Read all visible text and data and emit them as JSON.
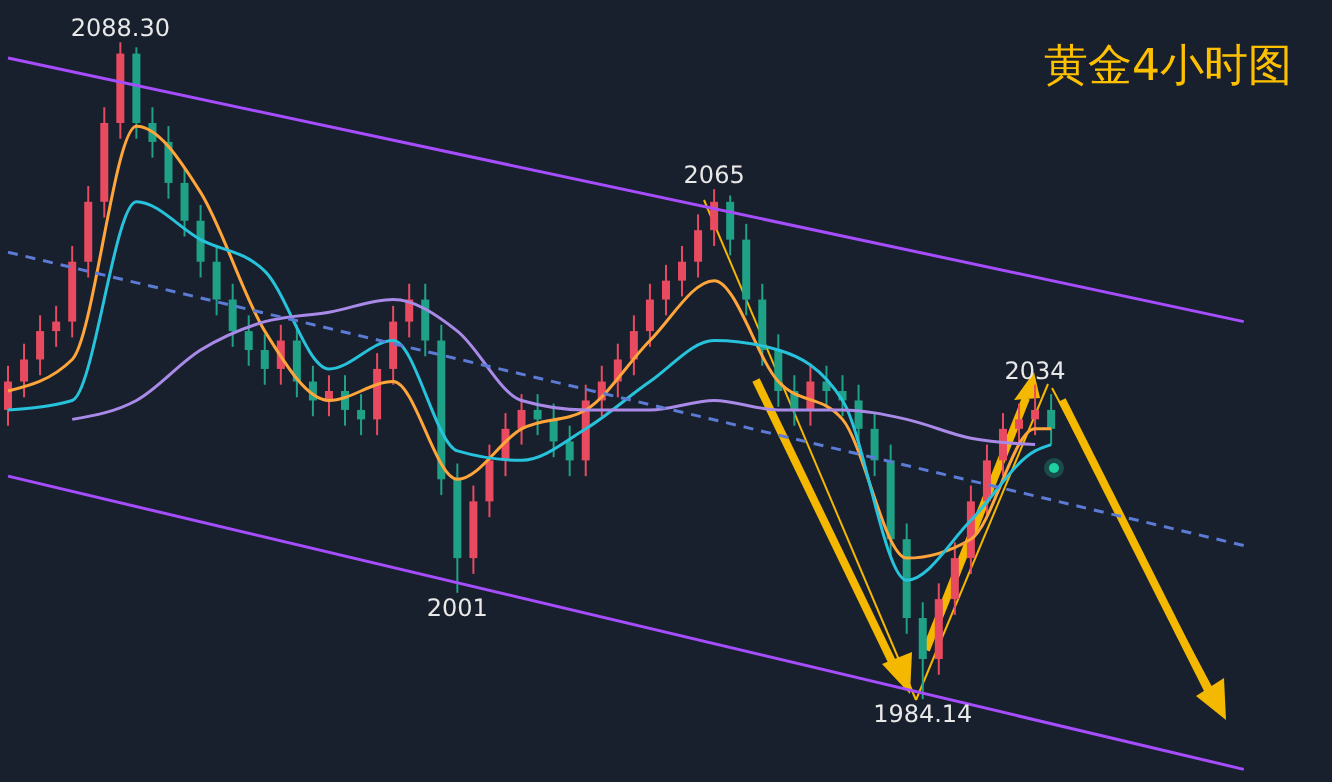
{
  "chart_data": {
    "type": "candlestick",
    "title": "黄金4小时图",
    "categories": [
      null,
      null,
      null,
      null,
      null,
      null,
      null,
      null,
      null,
      null,
      null,
      null,
      null,
      null,
      null,
      null,
      null,
      null,
      null,
      null,
      null,
      null,
      null,
      null,
      null,
      null,
      null,
      null,
      null,
      null,
      null,
      null,
      null,
      null,
      null,
      null,
      null,
      null,
      null,
      null,
      null,
      null,
      null,
      null,
      null,
      null,
      null,
      null,
      null,
      null,
      null,
      null,
      null,
      null,
      null,
      null,
      null,
      null,
      null,
      null,
      null,
      null,
      null,
      null,
      null,
      null,
      null,
      null,
      null,
      null,
      null,
      null,
      null,
      null,
      null,
      null,
      null,
      null,
      null,
      null,
      null,
      null,
      null
    ],
    "ylim": [
      1971,
      2095
    ],
    "tick_labels": false,
    "grid": false,
    "legend": false,
    "series": [
      {
        "colors": [
          "#e84a5f",
          "#e84a5f",
          "#e84a5f",
          "#e84a5f",
          "#e84a5f",
          "#e84a5f",
          "#e84a5f",
          "#e84a5f",
          "#1fa187",
          "#1fa187",
          "#1fa187",
          "#1fa187",
          "#1fa187",
          "#1fa187",
          "#1fa187",
          "#1fa187",
          "#1fa187",
          "#e84a5f",
          "#1fa187",
          "#1fa187",
          "#e84a5f",
          "#1fa187",
          "#1fa187",
          "#e84a5f",
          "#e84a5f",
          "#e84a5f",
          "#1fa187",
          "#1fa187",
          "#1fa187",
          "#e84a5f",
          "#e84a5f",
          "#e84a5f",
          "#e84a5f",
          "#1fa187",
          "#1fa187",
          "#1fa187",
          "#e84a5f",
          "#e84a5f",
          "#e84a5f",
          "#e84a5f",
          "#e84a5f",
          "#e84a5f",
          "#e84a5f",
          "#e84a5f",
          "#e84a5f",
          "#1fa187",
          "#1fa187",
          "#1fa187",
          "#1fa187",
          "#1fa187",
          "#e84a5f",
          "#1fa187",
          "#1fa187",
          "#1fa187",
          "#1fa187",
          "#1fa187",
          "#1fa187",
          "#1fa187",
          "#e84a5f",
          "#e84a5f",
          "#e84a5f",
          "#e84a5f",
          "#e84a5f",
          "#e84a5f",
          "#e84a5f",
          "#1fa187",
          null,
          null,
          null,
          null,
          null,
          null,
          null,
          null,
          null,
          null,
          null,
          null,
          null,
          null,
          null,
          null,
          null
        ],
        "ohlc": [
          [
            2030,
            2037,
            2027.5,
            2034.5
          ],
          [
            2034.5,
            2040.5,
            2032,
            2038
          ],
          [
            2038,
            2045,
            2035.5,
            2042.5
          ],
          [
            2042.5,
            2046.5,
            2040,
            2044
          ],
          [
            2044,
            2056,
            2041.5,
            2053.5
          ],
          [
            2053.5,
            2065.5,
            2051,
            2063
          ],
          [
            2063,
            2078,
            2060.5,
            2075.5
          ],
          [
            2075.5,
            2088.3,
            2073,
            2086.5
          ],
          [
            2086.5,
            2087.5,
            2073,
            2075.5
          ],
          [
            2075.5,
            2078,
            2070,
            2072.5
          ],
          [
            2072.5,
            2075,
            2063.5,
            2066
          ],
          [
            2066,
            2068.5,
            2057.5,
            2060
          ],
          [
            2060,
            2062.5,
            2051,
            2053.5
          ],
          [
            2053.5,
            2056,
            2045,
            2047.5
          ],
          [
            2047.5,
            2050,
            2040,
            2042.5
          ],
          [
            2042.5,
            2045,
            2037,
            2039.5
          ],
          [
            2039.5,
            2042,
            2034,
            2036.5
          ],
          [
            2036.5,
            2043.5,
            2034,
            2041
          ],
          [
            2041,
            2043.5,
            2032,
            2034.5
          ],
          [
            2034.5,
            2037,
            2029,
            2031.5
          ],
          [
            2031.5,
            2035.5,
            2029,
            2033
          ],
          [
            2033,
            2035.5,
            2027.5,
            2030
          ],
          [
            2030,
            2032.5,
            2026,
            2028.5
          ],
          [
            2028.5,
            2039,
            2026,
            2036.5
          ],
          [
            2036.5,
            2046.5,
            2034,
            2044
          ],
          [
            2044,
            2050,
            2041.5,
            2047.5
          ],
          [
            2047.5,
            2050,
            2038.5,
            2041
          ],
          [
            2041,
            2043.5,
            2016.5,
            2019
          ],
          [
            2019,
            2021.5,
            2001,
            2006.5
          ],
          [
            2006.5,
            2018,
            2004,
            2015.5
          ],
          [
            2015.5,
            2024.5,
            2013,
            2022
          ],
          [
            2022,
            2029.5,
            2019.5,
            2027
          ],
          [
            2027,
            2032.5,
            2024.5,
            2030
          ],
          [
            2030,
            2032.5,
            2026,
            2028.5
          ],
          [
            2028.5,
            2031,
            2022.5,
            2025
          ],
          [
            2025,
            2027.5,
            2019.5,
            2022
          ],
          [
            2022,
            2034,
            2019.5,
            2031.5
          ],
          [
            2031.5,
            2037,
            2029,
            2034.5
          ],
          [
            2034.5,
            2040.5,
            2032,
            2038
          ],
          [
            2038,
            2045,
            2035.5,
            2042.5
          ],
          [
            2042.5,
            2050,
            2040,
            2047.5
          ],
          [
            2047.5,
            2053,
            2045,
            2050.5
          ],
          [
            2050.5,
            2056,
            2048,
            2053.5
          ],
          [
            2053.5,
            2061,
            2051,
            2058.5
          ],
          [
            2058.5,
            2065,
            2056,
            2063
          ],
          [
            2063,
            2064,
            2054.5,
            2057
          ],
          [
            2057,
            2059.5,
            2045,
            2047.5
          ],
          [
            2047.5,
            2050,
            2037,
            2039.5
          ],
          [
            2039.5,
            2042,
            2030.5,
            2033
          ],
          [
            2033,
            2035.5,
            2027.5,
            2030
          ],
          [
            2030,
            2037,
            2027.5,
            2034.5
          ],
          [
            2034.5,
            2037,
            2030.5,
            2033
          ],
          [
            2033,
            2035.5,
            2029,
            2031.5
          ],
          [
            2031.5,
            2034,
            2024.5,
            2027
          ],
          [
            2027,
            2029.5,
            2019.5,
            2022
          ],
          [
            2022,
            2024.5,
            2007,
            2009.5
          ],
          [
            2009.5,
            2012,
            1994.5,
            1997
          ],
          [
            1997,
            1999.5,
            1984.14,
            1990.5
          ],
          [
            1990.5,
            2002.5,
            1988,
            2000
          ],
          [
            2000,
            2009,
            1997.5,
            2006.5
          ],
          [
            2006.5,
            2018,
            2004,
            2015.5
          ],
          [
            2015.5,
            2024.5,
            2013,
            2022
          ],
          [
            2022,
            2029.5,
            2019.5,
            2027
          ],
          [
            2027,
            2031,
            2024.5,
            2028.5
          ],
          [
            2028.5,
            2034,
            2026,
            2030
          ],
          [
            2030,
            2032.5,
            2024.5,
            2027
          ],
          null,
          null,
          null,
          null,
          null,
          null,
          null,
          null,
          null,
          null,
          null,
          null,
          null,
          null,
          null,
          null,
          null
        ]
      },
      {
        "type": "line",
        "color": "#ffa53a",
        "values": [
          2033,
          null,
          null,
          null,
          2038,
          null,
          null,
          null,
          2075,
          null,
          null,
          null,
          2064.5,
          null,
          null,
          null,
          2042.5,
          null,
          null,
          null,
          2031.5,
          null,
          null,
          null,
          2034.5,
          null,
          null,
          null,
          2019,
          null,
          null,
          null,
          2027,
          null,
          null,
          null,
          2030,
          null,
          null,
          null,
          2041,
          null,
          null,
          null,
          2050.5,
          null,
          null,
          null,
          2034.5,
          null,
          null,
          null,
          2028.5,
          null,
          null,
          null,
          2006.5,
          null,
          null,
          null,
          2009.5,
          null,
          null,
          null,
          2027,
          2027,
          null,
          null,
          null,
          null,
          null,
          null,
          null,
          null,
          null,
          null,
          null,
          null,
          null,
          null,
          null,
          null,
          null
        ]
      },
      {
        "type": "line",
        "color": "#27c3dc",
        "values": [
          2030,
          null,
          null,
          null,
          2031.5,
          null,
          null,
          null,
          2063,
          null,
          null,
          null,
          2057,
          null,
          null,
          null,
          2052,
          null,
          null,
          null,
          2036.5,
          null,
          null,
          null,
          2041,
          null,
          null,
          null,
          2023.5,
          null,
          null,
          null,
          2022,
          null,
          null,
          null,
          2027,
          null,
          null,
          null,
          2034.5,
          null,
          null,
          null,
          2041,
          null,
          null,
          null,
          2039.5,
          null,
          null,
          null,
          2031.5,
          null,
          null,
          null,
          2003,
          null,
          null,
          null,
          2012.5,
          null,
          null,
          null,
          2023.5,
          2024.5,
          null,
          null,
          null,
          null,
          null,
          null,
          null,
          null,
          null,
          null,
          null,
          null,
          null,
          null,
          null,
          null,
          null
        ]
      },
      {
        "type": "line",
        "color": "#a98ae8",
        "values": [
          null,
          null,
          null,
          null,
          2028.5,
          null,
          null,
          null,
          2031.5,
          null,
          null,
          null,
          2039.5,
          null,
          null,
          null,
          2044,
          null,
          null,
          null,
          2045.5,
          null,
          null,
          null,
          2047.5,
          null,
          null,
          null,
          2042.5,
          null,
          null,
          null,
          2031.5,
          null,
          null,
          null,
          2030,
          null,
          null,
          null,
          2030,
          null,
          null,
          null,
          2031.5,
          null,
          null,
          null,
          2030,
          null,
          null,
          null,
          2030,
          null,
          null,
          null,
          2028.5,
          null,
          null,
          null,
          2025.5,
          null,
          null,
          null,
          2024.5,
          null,
          null,
          null,
          null,
          null,
          null,
          null,
          null,
          null,
          null,
          null,
          null,
          null,
          null,
          null,
          null,
          null,
          null
        ]
      },
      {
        "type": "line",
        "color": "#a64dff",
        "values": [
          2085.8,
          null,
          null,
          null,
          null,
          null,
          null,
          null,
          null,
          null,
          null,
          null,
          null,
          null,
          null,
          null,
          null,
          null,
          null,
          null,
          null,
          null,
          null,
          null,
          null,
          null,
          null,
          null,
          null,
          null,
          null,
          null,
          null,
          null,
          null,
          null,
          null,
          null,
          null,
          null,
          null,
          null,
          null,
          null,
          null,
          null,
          null,
          null,
          null,
          null,
          null,
          null,
          null,
          null,
          null,
          null,
          null,
          null,
          null,
          null,
          null,
          null,
          null,
          null,
          null,
          null,
          null,
          null,
          null,
          null,
          null,
          null,
          null,
          null,
          null,
          null,
          null,
          2044,
          null,
          null,
          null,
          null,
          null
        ]
      },
      {
        "type": "line",
        "color": "#a64dff",
        "values": [
          2019.5,
          null,
          null,
          null,
          null,
          null,
          null,
          null,
          null,
          null,
          null,
          null,
          null,
          null,
          null,
          null,
          null,
          null,
          null,
          null,
          null,
          null,
          null,
          null,
          null,
          null,
          null,
          null,
          null,
          null,
          null,
          null,
          null,
          null,
          null,
          null,
          null,
          null,
          null,
          null,
          null,
          null,
          null,
          null,
          null,
          null,
          null,
          null,
          null,
          null,
          null,
          null,
          null,
          null,
          null,
          null,
          null,
          null,
          null,
          null,
          null,
          null,
          null,
          null,
          null,
          null,
          null,
          null,
          null,
          null,
          null,
          null,
          null,
          null,
          null,
          null,
          null,
          1973,
          null,
          null,
          null,
          null,
          null
        ]
      },
      {
        "type": "line",
        "color": "#5b7bd5",
        "line_style": "dashed",
        "values": [
          2055,
          null,
          null,
          null,
          null,
          null,
          null,
          null,
          null,
          null,
          null,
          null,
          null,
          null,
          null,
          null,
          null,
          null,
          null,
          null,
          null,
          null,
          null,
          null,
          null,
          null,
          null,
          null,
          null,
          null,
          null,
          null,
          null,
          null,
          null,
          null,
          null,
          null,
          null,
          null,
          null,
          null,
          null,
          null,
          null,
          null,
          null,
          null,
          null,
          null,
          null,
          null,
          null,
          null,
          null,
          null,
          null,
          null,
          null,
          null,
          null,
          null,
          null,
          null,
          null,
          null,
          null,
          null,
          null,
          null,
          null,
          null,
          null,
          null,
          null,
          null,
          null,
          2008.5,
          null,
          null,
          null,
          null,
          null
        ]
      }
    ],
    "annotations": [
      {
        "text": "2088.30",
        "y": 2088.3
      },
      {
        "text": "2065",
        "y": 2065
      },
      {
        "text": "2001",
        "y": 2001
      },
      {
        "text": "2034",
        "y": 2034
      },
      {
        "text": "1984.14",
        "y": 1984.14
      }
    ]
  }
}
